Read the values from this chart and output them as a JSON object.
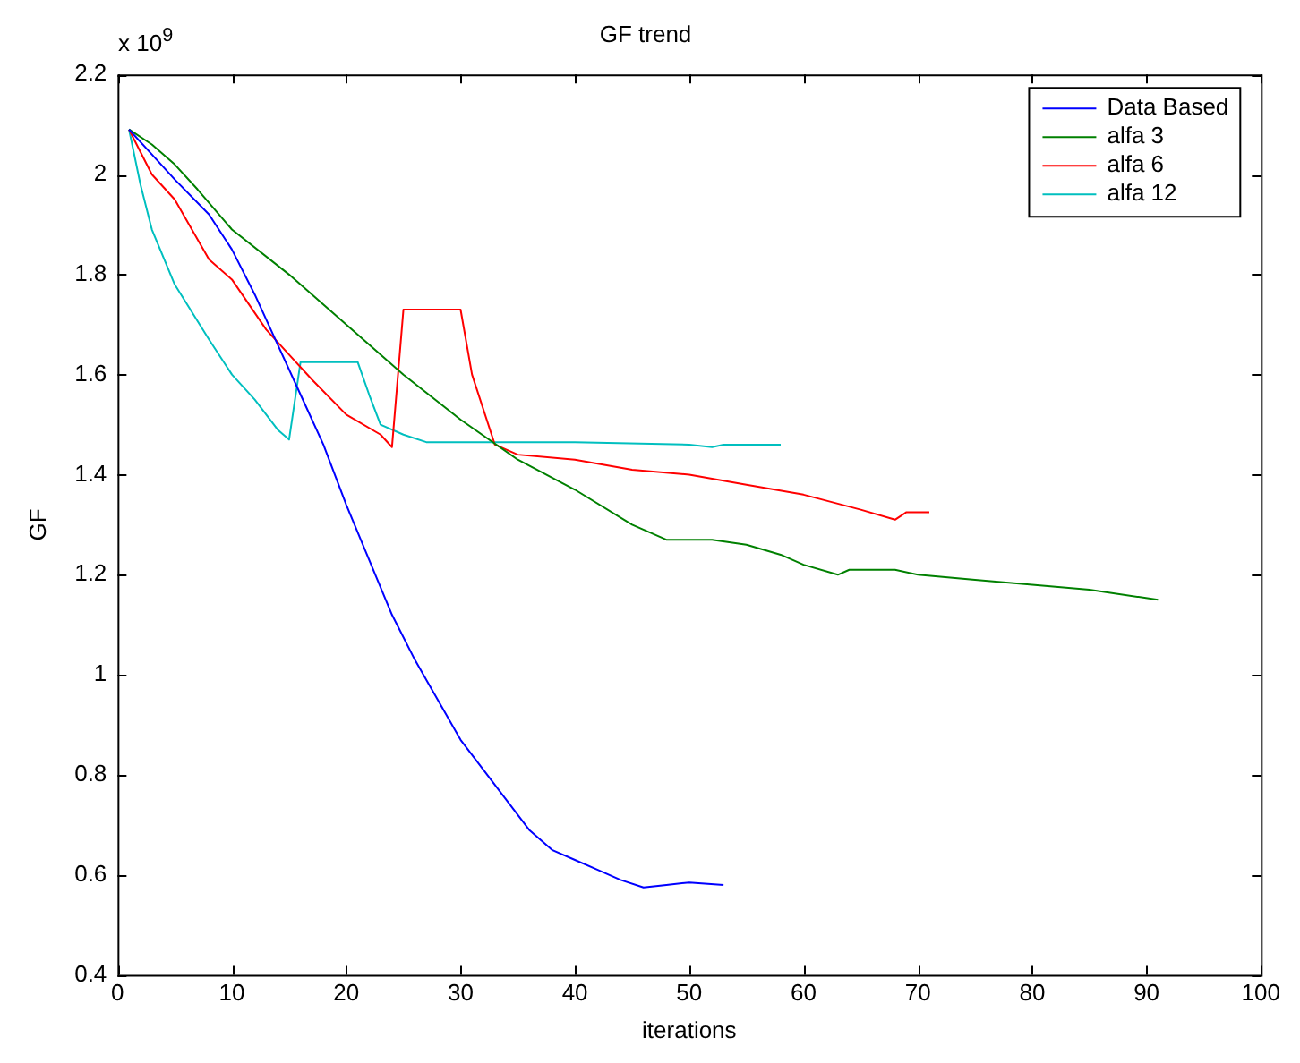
{
  "chart_data": {
    "type": "line",
    "title": "GF trend",
    "xlabel": "iterations",
    "ylabel": "GF",
    "annotations": [
      "x 10$^{9}$"
    ],
    "xlim": [
      0,
      100
    ],
    "xticks": [
      0,
      10,
      20,
      30,
      40,
      50,
      60,
      70,
      80,
      90,
      100
    ],
    "ylim": [
      0.4,
      2.2
    ],
    "yticks": [
      0.4,
      0.6,
      0.8,
      1,
      1.2,
      1.4,
      1.6,
      1.8,
      2,
      2.2
    ],
    "grid": false,
    "legend": "top right",
    "marker": "none",
    "line_style": "solid",
    "series": [
      {
        "name": "Data Based",
        "color": "#0000ff",
        "x": [
          1,
          3,
          5,
          8,
          10,
          12,
          14,
          16,
          18,
          20,
          22,
          24,
          26,
          28,
          30,
          32,
          34,
          36,
          38,
          40,
          42,
          44,
          46,
          48,
          50,
          53
        ],
        "values": [
          2.09,
          2.04,
          1.99,
          1.92,
          1.85,
          1.76,
          1.66,
          1.56,
          1.46,
          1.34,
          1.23,
          1.12,
          1.03,
          0.95,
          0.87,
          0.81,
          0.75,
          0.69,
          0.65,
          0.63,
          0.61,
          0.59,
          0.575,
          0.58,
          0.585,
          0.58
        ]
      },
      {
        "name": "alfa 3",
        "color": "#008000",
        "x": [
          1,
          3,
          5,
          7,
          10,
          15,
          20,
          25,
          30,
          35,
          40,
          45,
          48,
          52,
          55,
          58,
          60,
          63,
          64,
          68,
          70,
          75,
          80,
          85,
          91
        ],
        "values": [
          2.09,
          2.06,
          2.02,
          1.97,
          1.89,
          1.8,
          1.7,
          1.6,
          1.51,
          1.43,
          1.37,
          1.3,
          1.27,
          1.27,
          1.26,
          1.24,
          1.22,
          1.2,
          1.21,
          1.21,
          1.2,
          1.19,
          1.18,
          1.17,
          1.15
        ]
      },
      {
        "name": "alfa 6",
        "color": "#ff0000",
        "x": [
          1,
          3,
          5,
          8,
          10,
          13,
          15,
          17,
          20,
          23,
          24,
          25,
          30,
          31,
          33,
          35,
          40,
          45,
          50,
          55,
          60,
          65,
          68,
          69,
          71
        ],
        "values": [
          2.09,
          2.0,
          1.95,
          1.83,
          1.79,
          1.69,
          1.64,
          1.59,
          1.52,
          1.48,
          1.455,
          1.73,
          1.73,
          1.6,
          1.46,
          1.44,
          1.43,
          1.41,
          1.4,
          1.38,
          1.36,
          1.33,
          1.31,
          1.325,
          1.325
        ]
      },
      {
        "name": "alfa 12",
        "color": "#00bfbf",
        "x": [
          1,
          2,
          3,
          5,
          8,
          10,
          12,
          14,
          15,
          16,
          21,
          22,
          23,
          25,
          27,
          30,
          40,
          50,
          52,
          53,
          58
        ],
        "values": [
          2.09,
          1.98,
          1.89,
          1.78,
          1.67,
          1.6,
          1.55,
          1.49,
          1.47,
          1.625,
          1.625,
          1.56,
          1.5,
          1.48,
          1.465,
          1.465,
          1.465,
          1.46,
          1.455,
          1.46,
          1.46
        ]
      }
    ]
  }
}
